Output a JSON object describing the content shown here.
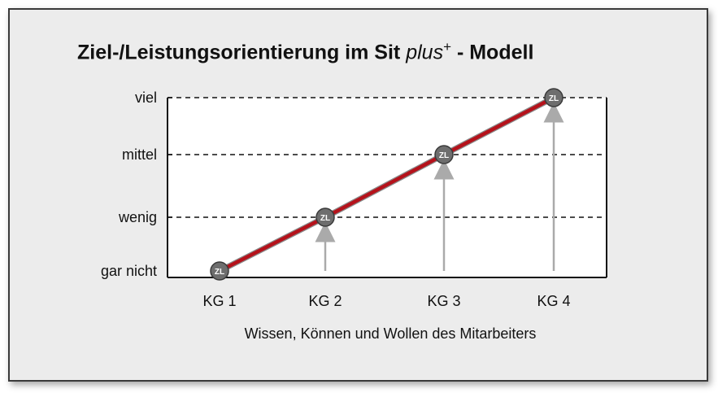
{
  "chart_data": {
    "type": "line",
    "title_main": "Ziel-/Leistungsorientierung im Sit ",
    "title_italic": "plus",
    "title_sup": "+",
    "title_tail": " - Modell",
    "xlabel": "Wissen, Können und Wollen des Mitarbeiters",
    "categories": [
      "KG 1",
      "KG 2",
      "KG 3",
      "KG 4"
    ],
    "x_values": [
      1,
      2,
      3,
      4
    ],
    "y_levels": [
      "gar nicht",
      "wenig",
      "mittel",
      "viel"
    ],
    "values": [
      0,
      1,
      2,
      3
    ],
    "marker_label": "ZL",
    "grid": "dashed horizontal at wenig, mittel, viel",
    "arrows": "from baseline up to each point at KG 2, KG 3, KG 4",
    "colors": {
      "line": "#b5121b",
      "marker": "#6e6e6e",
      "arrow": "#aaaaaa",
      "background": "#ececec"
    }
  }
}
